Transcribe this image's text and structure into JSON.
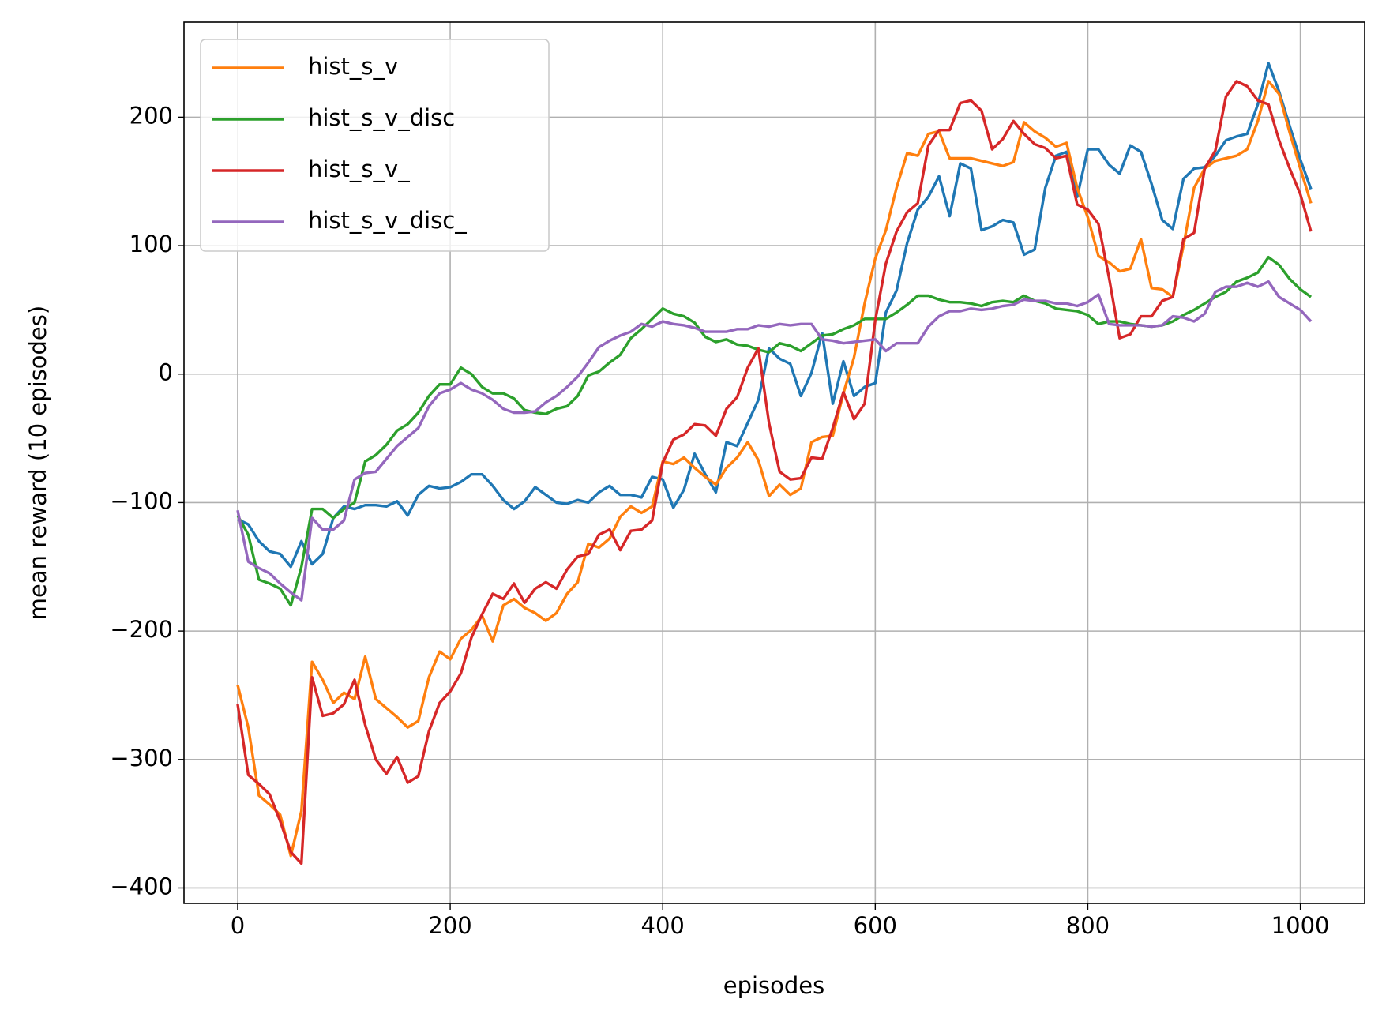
{
  "chart_data": {
    "type": "line",
    "x_label": "episodes",
    "y_label": "mean reward (10 episodes)",
    "x": [
      0,
      10,
      20,
      30,
      40,
      50,
      60,
      70,
      80,
      90,
      100,
      110,
      120,
      130,
      140,
      150,
      160,
      170,
      180,
      190,
      200,
      210,
      220,
      230,
      240,
      250,
      260,
      270,
      280,
      290,
      300,
      310,
      320,
      330,
      340,
      350,
      360,
      370,
      380,
      390,
      400,
      410,
      420,
      430,
      440,
      450,
      460,
      470,
      480,
      490,
      500,
      510,
      520,
      530,
      540,
      550,
      560,
      570,
      580,
      590,
      600,
      610,
      620,
      630,
      640,
      650,
      660,
      670,
      680,
      690,
      700,
      710,
      720,
      730,
      740,
      750,
      760,
      770,
      780,
      790,
      800,
      810,
      820,
      830,
      840,
      850,
      860,
      870,
      880,
      890,
      900,
      910,
      920,
      930,
      940,
      950,
      960,
      970,
      980,
      990,
      1000,
      1010
    ],
    "series": [
      {
        "color": "#1f77b4",
        "values": [
          -113,
          -117,
          -130,
          -138,
          -140,
          -150,
          -130,
          -148,
          -140,
          -112,
          -103,
          -105,
          -102,
          -102,
          -103,
          -99,
          -110,
          -94,
          -87,
          -89,
          -88,
          -84,
          -78,
          -78,
          -87,
          -98,
          -105,
          -99,
          -88,
          -94,
          -100,
          -101,
          -98,
          -100,
          -92,
          -87,
          -94,
          -94,
          -96,
          -80,
          -82,
          -104,
          -90,
          -62,
          -78,
          -92,
          -53,
          -56,
          -38,
          -20,
          20,
          12,
          8,
          -17,
          1,
          32,
          -23,
          10,
          -17,
          -10,
          -7,
          48,
          65,
          102,
          128,
          138,
          154,
          123,
          164,
          160,
          112,
          115,
          120,
          118,
          93,
          97,
          145,
          170,
          173,
          138,
          175,
          175,
          163,
          156,
          178,
          173,
          148,
          120,
          113,
          152,
          160,
          161,
          170,
          182,
          185,
          187,
          210,
          242,
          220,
          193,
          167,
          144
        ]
      },
      {
        "name": "hist_s_v",
        "color": "#ff7f0e",
        "values": [
          -242,
          -275,
          -328,
          -335,
          -343,
          -375,
          -340,
          -224,
          -238,
          -256,
          -248,
          -253,
          -220,
          -253,
          -260,
          -267,
          -275,
          -270,
          -236,
          -216,
          -222,
          -206,
          -199,
          -188,
          -208,
          -180,
          -175,
          -182,
          -186,
          -192,
          -186,
          -171,
          -162,
          -132,
          -135,
          -128,
          -111,
          -103,
          -108,
          -103,
          -68,
          -70,
          -65,
          -73,
          -80,
          -86,
          -73,
          -65,
          -53,
          -67,
          -95,
          -86,
          -94,
          -89,
          -53,
          -49,
          -48,
          -15,
          13,
          55,
          90,
          112,
          145,
          172,
          170,
          187,
          189,
          168,
          168,
          168,
          166,
          164,
          162,
          165,
          196,
          189,
          184,
          177,
          180,
          145,
          122,
          92,
          87,
          80,
          82,
          105,
          67,
          66,
          60,
          100,
          145,
          160,
          166,
          168,
          170,
          175,
          197,
          228,
          218,
          188,
          160,
          133
        ]
      },
      {
        "name": "hist_s_v_disc",
        "color": "#2ca02c",
        "values": [
          -110,
          -125,
          -160,
          -163,
          -167,
          -180,
          -150,
          -105,
          -105,
          -112,
          -105,
          -100,
          -68,
          -63,
          -55,
          -44,
          -39,
          -30,
          -17,
          -8,
          -8,
          5,
          0,
          -10,
          -15,
          -15,
          -19,
          -28,
          -30,
          -31,
          -27,
          -25,
          -17,
          -1,
          2,
          9,
          15,
          28,
          35,
          43,
          51,
          47,
          45,
          40,
          29,
          25,
          27,
          23,
          22,
          19,
          17,
          24,
          22,
          18,
          24,
          30,
          31,
          35,
          38,
          43,
          43,
          43,
          48,
          54,
          61,
          61,
          58,
          56,
          56,
          55,
          53,
          56,
          57,
          56,
          61,
          57,
          55,
          51,
          50,
          49,
          46,
          39,
          41,
          41,
          39,
          38,
          37,
          38,
          41,
          46,
          50,
          55,
          60,
          64,
          72,
          75,
          79,
          91,
          85,
          74,
          66,
          60
        ]
      },
      {
        "name": "hist_s_v_",
        "color": "#d62728",
        "values": [
          -257,
          -312,
          -319,
          -327,
          -348,
          -372,
          -381,
          -236,
          -266,
          -264,
          -257,
          -238,
          -273,
          -300,
          -311,
          -298,
          -318,
          -313,
          -278,
          -256,
          -247,
          -233,
          -205,
          -187,
          -171,
          -175,
          -163,
          -178,
          -167,
          -162,
          -167,
          -152,
          -142,
          -140,
          -125,
          -121,
          -137,
          -122,
          -121,
          -114,
          -69,
          -51,
          -47,
          -39,
          -40,
          -48,
          -27,
          -18,
          5,
          20,
          -38,
          -76,
          -82,
          -81,
          -65,
          -66,
          -42,
          -14,
          -35,
          -23,
          42,
          86,
          111,
          126,
          133,
          178,
          190,
          190,
          211,
          213,
          205,
          175,
          183,
          197,
          187,
          179,
          176,
          168,
          170,
          132,
          128,
          117,
          75,
          28,
          31,
          45,
          45,
          57,
          60,
          105,
          110,
          160,
          174,
          216,
          228,
          224,
          213,
          210,
          182,
          160,
          140,
          111
        ]
      },
      {
        "name": "hist_s_v_disc_",
        "color": "#9467bd",
        "values": [
          -106,
          -146,
          -151,
          -155,
          -163,
          -170,
          -176,
          -112,
          -121,
          -121,
          -114,
          -82,
          -77,
          -76,
          -66,
          -56,
          -49,
          -42,
          -25,
          -15,
          -12,
          -7,
          -12,
          -15,
          -20,
          -27,
          -30,
          -30,
          -29,
          -22,
          -17,
          -10,
          -2,
          9,
          21,
          26,
          30,
          33,
          39,
          37,
          41,
          39,
          38,
          36,
          33,
          33,
          33,
          35,
          35,
          38,
          37,
          39,
          38,
          39,
          39,
          27,
          26,
          24,
          25,
          26,
          27,
          18,
          24,
          24,
          24,
          37,
          45,
          49,
          49,
          51,
          50,
          51,
          53,
          54,
          58,
          57,
          57,
          55,
          55,
          53,
          56,
          62,
          39,
          38,
          38,
          38,
          37,
          38,
          45,
          44,
          41,
          47,
          64,
          68,
          68,
          71,
          68,
          72,
          60,
          55,
          50,
          41
        ]
      }
    ],
    "xlim": [
      -50.5,
      1060.5
    ],
    "ylim": [
      -412,
      274
    ],
    "xticks": [
      0,
      200,
      400,
      600,
      800,
      1000
    ],
    "yticks": [
      {
        "value": -400,
        "label": "−400"
      },
      {
        "value": -300,
        "label": "−300"
      },
      {
        "value": -200,
        "label": "−200"
      },
      {
        "value": -100,
        "label": "−100"
      },
      0,
      100,
      200
    ],
    "grid": true,
    "legend": "upper left"
  }
}
